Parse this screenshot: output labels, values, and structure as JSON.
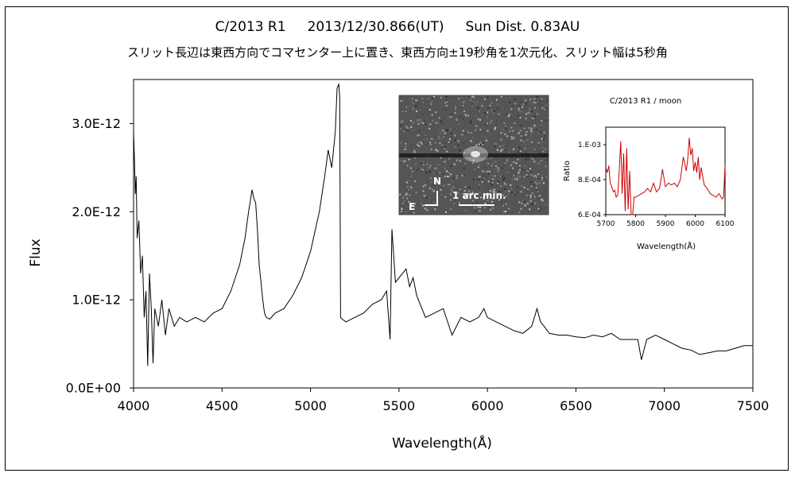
{
  "header": {
    "title": "C/2013 R1     2013/12/30.866(UT)     Sun Dist. 0.83AU",
    "subtitle": "スリット長辺は東西方向でコマセンター上に置き、東西方向±19秒角を1次元化、スリット幅は5秒角"
  },
  "colors": {
    "main_line": "#000000",
    "inset_line": "#cc0000",
    "image_bg": "#555555"
  },
  "image_inset": {
    "north_label": "N",
    "east_label": "E",
    "scale_label": "1 arc min."
  },
  "chart_data": [
    {
      "type": "line",
      "title": "",
      "xlabel": "Wavelength(Å)",
      "ylabel": "Flux",
      "xlim": [
        4000,
        7500
      ],
      "ylim": [
        0,
        3.5e-12
      ],
      "xticks": [
        "4000",
        "4500",
        "5000",
        "5500",
        "6000",
        "6500",
        "7000",
        "7500"
      ],
      "xtick_values": [
        4000,
        4500,
        5000,
        5500,
        6000,
        6500,
        7000,
        7500
      ],
      "yticks": [
        "0.0E+00",
        "1.0E-12",
        "2.0E-12",
        "3.0E-12"
      ],
      "ytick_values": [
        0,
        1e-12,
        2e-12,
        3e-12
      ],
      "grid": false,
      "series": [
        {
          "name": "",
          "x": [
            4000,
            4005,
            4010,
            4015,
            4020,
            4030,
            4040,
            4050,
            4060,
            4070,
            4080,
            4090,
            4100,
            4110,
            4120,
            4140,
            4160,
            4180,
            4200,
            4230,
            4260,
            4300,
            4350,
            4400,
            4450,
            4500,
            4550,
            4600,
            4630,
            4650,
            4670,
            4680,
            4690,
            4700,
            4710,
            4720,
            4730,
            4740,
            4750,
            4770,
            4800,
            4850,
            4900,
            4950,
            5000,
            5050,
            5080,
            5100,
            5120,
            5140,
            5150,
            5160,
            5165,
            5170,
            5180,
            5200,
            5250,
            5300,
            5350,
            5400,
            5430,
            5450,
            5460,
            5480,
            5500,
            5520,
            5540,
            5560,
            5580,
            5600,
            5650,
            5700,
            5750,
            5800,
            5850,
            5900,
            5950,
            5980,
            6000,
            6050,
            6100,
            6150,
            6200,
            6250,
            6280,
            6300,
            6320,
            6350,
            6400,
            6450,
            6500,
            6550,
            6600,
            6650,
            6700,
            6750,
            6800,
            6850,
            6870,
            6900,
            6950,
            7000,
            7050,
            7100,
            7150,
            7200,
            7250,
            7300,
            7350,
            7400,
            7450,
            7500
          ],
          "y": [
            2.9e-12,
            2.6e-12,
            2.2e-12,
            2.4e-12,
            1.7e-12,
            1.9e-12,
            1.3e-12,
            1.5e-12,
            8e-13,
            1.1e-12,
            2.5e-13,
            1.3e-12,
            9e-13,
            2.8e-13,
            9e-13,
            7e-13,
            1e-12,
            6e-13,
            9e-13,
            7e-13,
            8e-13,
            7.5e-13,
            8e-13,
            7.5e-13,
            8.5e-13,
            9e-13,
            1.1e-12,
            1.4e-12,
            1.7e-12,
            2e-12,
            2.25e-12,
            2.15e-12,
            2.1e-12,
            1.8e-12,
            1.4e-12,
            1.2e-12,
            1e-12,
            8.5e-13,
            8e-13,
            7.8e-13,
            8.5e-13,
            9e-13,
            1.05e-12,
            1.25e-12,
            1.55e-12,
            2e-12,
            2.4e-12,
            2.7e-12,
            2.5e-12,
            2.9e-12,
            3.4e-12,
            3.45e-12,
            3.3e-12,
            8e-13,
            7.8e-13,
            7.5e-13,
            8e-13,
            8.5e-13,
            9.5e-13,
            1e-12,
            1.1e-12,
            5.5e-13,
            1.8e-12,
            1.2e-12,
            1.25e-12,
            1.3e-12,
            1.35e-12,
            1.15e-12,
            1.25e-12,
            1.05e-12,
            8e-13,
            8.5e-13,
            9e-13,
            6e-13,
            8e-13,
            7.5e-13,
            8e-13,
            9e-13,
            8e-13,
            7.5e-13,
            7e-13,
            6.5e-13,
            6.2e-13,
            7e-13,
            9e-13,
            7.5e-13,
            7e-13,
            6.2e-13,
            6e-13,
            6e-13,
            5.8e-13,
            5.7e-13,
            6e-13,
            5.8e-13,
            6.2e-13,
            5.5e-13,
            5.5e-13,
            5.5e-13,
            3.2e-13,
            5.5e-13,
            6e-13,
            5.5e-13,
            5e-13,
            4.5e-13,
            4.3e-13,
            3.8e-13,
            4e-13,
            4.2e-13,
            4.2e-13,
            4.5e-13,
            4.8e-13,
            4.8e-13
          ]
        }
      ]
    },
    {
      "type": "line",
      "title": "C/2013 R1 / moon",
      "xlabel": "Wavelength(Å)",
      "ylabel": "Ratio",
      "xlim": [
        5700,
        6100
      ],
      "ylim": [
        0.0006,
        0.0011
      ],
      "xticks": [
        "5700",
        "5800",
        "5900",
        "6000",
        "6100"
      ],
      "xtick_values": [
        5700,
        5800,
        5900,
        6000,
        6100
      ],
      "yticks": [
        "6.E-04",
        "8.E-04",
        "1.E-03"
      ],
      "ytick_values": [
        0.0006,
        0.0008,
        0.001
      ],
      "grid": false,
      "series": [
        {
          "name": "",
          "x": [
            5700,
            5705,
            5710,
            5715,
            5720,
            5725,
            5730,
            5735,
            5740,
            5745,
            5750,
            5755,
            5760,
            5765,
            5770,
            5775,
            5780,
            5785,
            5790,
            5795,
            5800,
            5810,
            5820,
            5830,
            5840,
            5850,
            5860,
            5870,
            5880,
            5885,
            5890,
            5900,
            5910,
            5920,
            5930,
            5940,
            5950,
            5960,
            5970,
            5975,
            5980,
            5985,
            5990,
            5995,
            6000,
            6005,
            6010,
            6015,
            6020,
            6030,
            6040,
            6050,
            6060,
            6070,
            6080,
            6090,
            6095,
            6100
          ],
          "y": [
            0.00087,
            0.00084,
            0.00088,
            0.00078,
            0.00076,
            0.00073,
            0.00074,
            0.0007,
            0.00071,
            0.00085,
            0.00102,
            0.00072,
            0.00095,
            0.00062,
            0.00098,
            0.00063,
            0.00085,
            0.0006,
            0.0006,
            0.0007,
            0.0007,
            0.00071,
            0.00072,
            0.00073,
            0.00075,
            0.00073,
            0.00078,
            0.00073,
            0.00075,
            0.0008,
            0.00086,
            0.00076,
            0.00078,
            0.00077,
            0.00078,
            0.00076,
            0.0008,
            0.00093,
            0.00085,
            0.00092,
            0.00104,
            0.00094,
            0.00098,
            0.00085,
            0.0009,
            0.00084,
            0.00093,
            0.0008,
            0.00087,
            0.00077,
            0.00075,
            0.00072,
            0.00071,
            0.0007,
            0.00072,
            0.00069,
            0.0007,
            0.00088
          ]
        }
      ]
    }
  ]
}
